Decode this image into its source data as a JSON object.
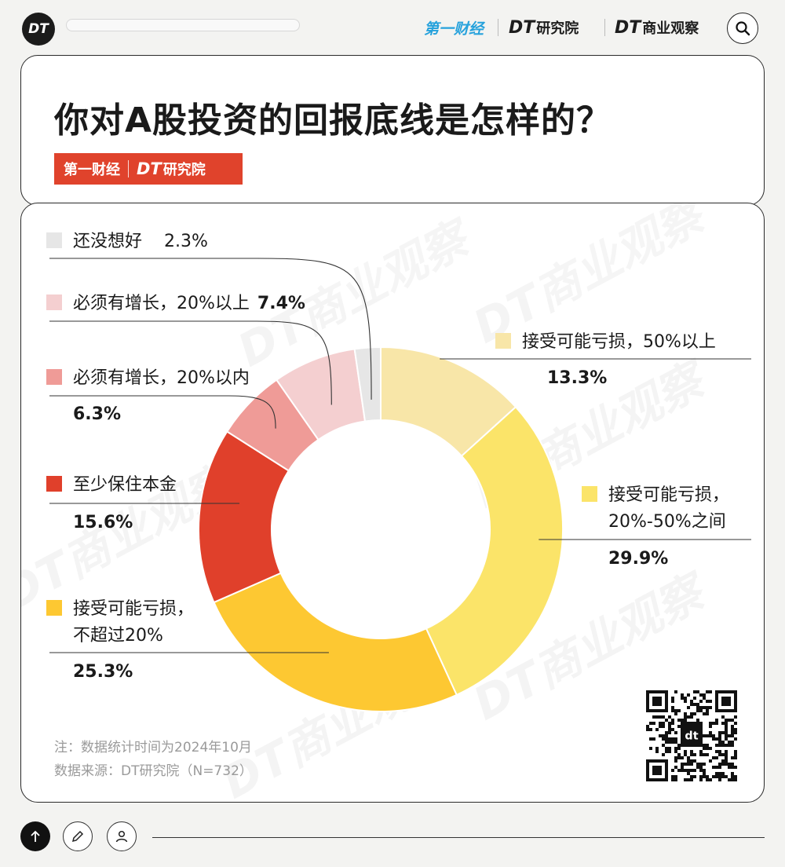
{
  "header": {
    "badge": "DT",
    "brand_yicai": "第一财经",
    "brand_dt_research": {
      "mark": "DT",
      "text": "研究院"
    },
    "brand_dt_business": {
      "mark": "DT",
      "text": "商业观察"
    },
    "search_icon": "search-icon"
  },
  "title": "你对A股投资的回报底线是怎样的？",
  "logo_strip": {
    "yicai": "第一财经",
    "mark": "DT",
    "text": "研究院"
  },
  "watermark": "DT商业观察",
  "chart_data": {
    "type": "pie",
    "subtype": "donut",
    "title": "你对A股投资的回报底线是怎样的？",
    "start": "12 o'clock, clockwise",
    "slices": [
      {
        "label": "接受可能亏损，50%以上",
        "value": 13.3,
        "display": "13.3%",
        "color": "#f8e6a8"
      },
      {
        "label_lines": [
          "接受可能亏损，",
          "20%-50%之间"
        ],
        "label": "接受可能亏损，20%-50%之间",
        "value": 29.9,
        "display": "29.9%",
        "color": "#fbe469"
      },
      {
        "label_lines": [
          "接受可能亏损，",
          "不超过20%"
        ],
        "label": "接受可能亏损，不超过20%",
        "value": 25.3,
        "display": "25.3%",
        "color": "#fdc832"
      },
      {
        "label": "至少保住本金",
        "value": 15.6,
        "display": "15.6%",
        "color": "#e0402b"
      },
      {
        "label": "必须有增长，20%以内",
        "value": 6.3,
        "display": "6.3%",
        "color": "#ef9b97"
      },
      {
        "label": "必须有增长，20%以上",
        "value": 7.4,
        "display": "7.4%",
        "color": "#f4cfd0"
      },
      {
        "label": "还没想好",
        "value": 2.3,
        "display": "2.3%",
        "color": "#e6e6e6"
      }
    ]
  },
  "notes": {
    "note1": "注：数据统计时间为2024年10月",
    "note2": "数据来源：DT研究院（N=732）"
  },
  "footer": {
    "up_icon": "arrow-up-icon",
    "edit_icon": "pencil-icon",
    "user_icon": "user-icon"
  }
}
